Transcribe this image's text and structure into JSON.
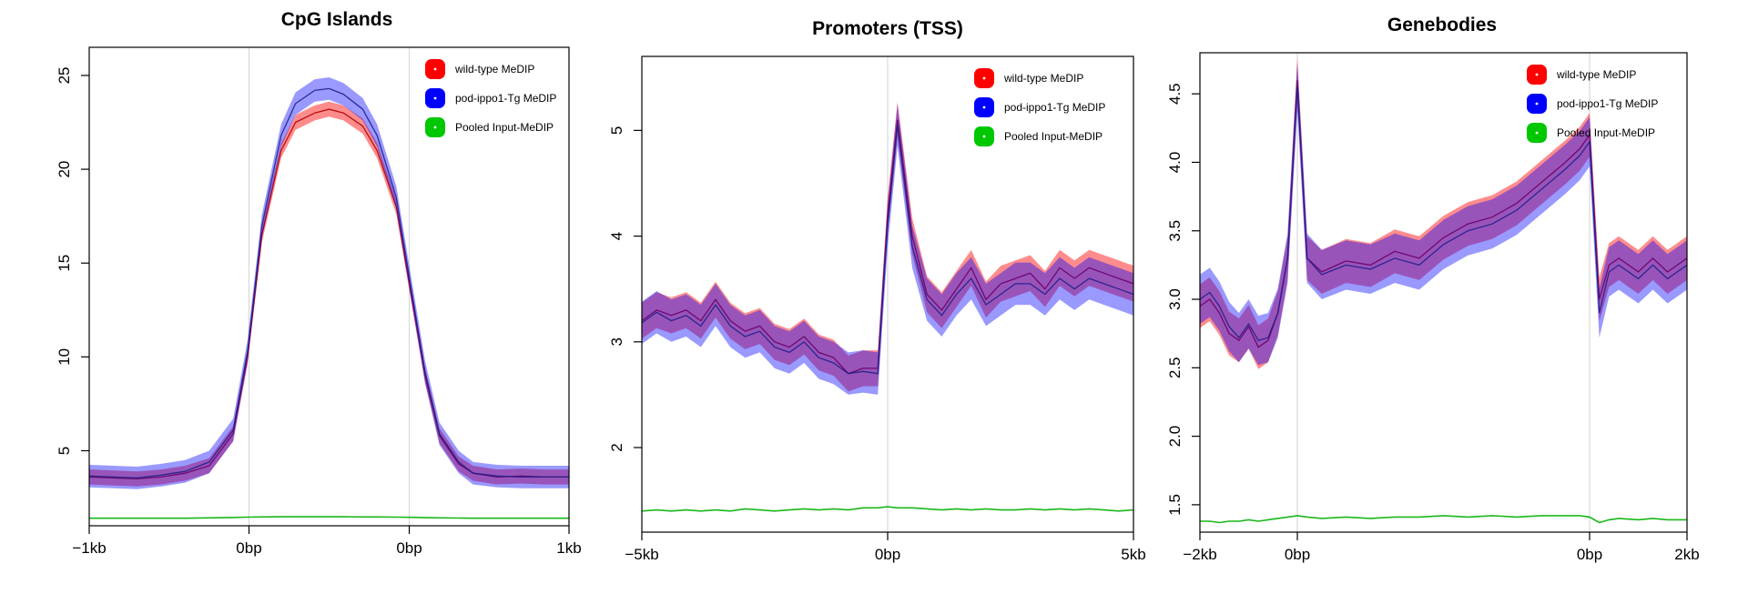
{
  "chart_data": [
    {
      "type": "line",
      "title": "CpG Islands",
      "xlabel": "",
      "ylabel": "",
      "x_ticks": [
        {
          "label": "−1kb",
          "pos": 0
        },
        {
          "label": "0bp",
          "pos": 0.333
        },
        {
          "label": "0bp",
          "pos": 0.667
        },
        {
          "label": "1kb",
          "pos": 1
        }
      ],
      "vlines": [
        0.333,
        0.667
      ],
      "ylim": [
        1.0,
        26.5
      ],
      "yticks": [
        5,
        10,
        15,
        20,
        25
      ],
      "ytick_labels": [
        "5",
        "10",
        "15",
        "20",
        "25"
      ],
      "legend": [
        {
          "label": "wild-type MeDIP",
          "color": "#ff0000"
        },
        {
          "label": "pod-ippo1-Tg MeDIP",
          "color": "#0000ff"
        },
        {
          "label": "Pooled Input-MeDIP",
          "color": "#00c800"
        }
      ],
      "legend_position": "top-right",
      "x": [
        0,
        0.05,
        0.1,
        0.15,
        0.2,
        0.25,
        0.3,
        0.33,
        0.36,
        0.4,
        0.43,
        0.47,
        0.5,
        0.53,
        0.57,
        0.6,
        0.64,
        0.67,
        0.7,
        0.73,
        0.77,
        0.8,
        0.85,
        0.9,
        0.95,
        1.0
      ],
      "series": [
        {
          "name": "wild-type MeDIP",
          "color": "#ff0000",
          "band": 0.4,
          "values": [
            3.6,
            3.55,
            3.5,
            3.6,
            3.8,
            4.2,
            5.9,
            10.0,
            16.5,
            21.0,
            22.5,
            23.0,
            23.2,
            23.0,
            22.3,
            21.0,
            18.0,
            13.5,
            9.0,
            5.8,
            4.3,
            3.8,
            3.6,
            3.65,
            3.6,
            3.6
          ]
        },
        {
          "name": "pod-ippo1-Tg MeDIP",
          "color": "#0000ff",
          "band": 0.6,
          "values": [
            3.65,
            3.6,
            3.55,
            3.7,
            3.9,
            4.4,
            6.1,
            10.3,
            17.0,
            21.8,
            23.5,
            24.2,
            24.3,
            24.0,
            23.2,
            21.8,
            18.5,
            13.8,
            9.2,
            5.9,
            4.4,
            3.8,
            3.65,
            3.6,
            3.6,
            3.6
          ]
        },
        {
          "name": "Pooled Input-MeDIP",
          "color": "#00c800",
          "band": 0,
          "values": [
            1.4,
            1.4,
            1.4,
            1.4,
            1.4,
            1.42,
            1.44,
            1.46,
            1.47,
            1.48,
            1.48,
            1.48,
            1.48,
            1.48,
            1.47,
            1.47,
            1.46,
            1.45,
            1.43,
            1.42,
            1.41,
            1.4,
            1.4,
            1.4,
            1.4,
            1.4
          ]
        }
      ]
    },
    {
      "type": "line",
      "title": "Promoters (TSS)",
      "xlabel": "",
      "ylabel": "",
      "x_ticks": [
        {
          "label": "−5kb",
          "pos": 0
        },
        {
          "label": "0bp",
          "pos": 0.5
        },
        {
          "label": "5kb",
          "pos": 1
        }
      ],
      "vlines": [
        0.5
      ],
      "ylim": [
        1.2,
        5.7
      ],
      "yticks": [
        2,
        3,
        4,
        5
      ],
      "ytick_labels": [
        "2",
        "3",
        "4",
        "5"
      ],
      "legend": [
        {
          "label": "wild-type MeDIP",
          "color": "#ff0000"
        },
        {
          "label": "pod-ippo1-Tg MeDIP",
          "color": "#0000ff"
        },
        {
          "label": "Pooled Input-MeDIP",
          "color": "#00c800"
        }
      ],
      "legend_position": "top-right",
      "x": [
        0,
        0.03,
        0.06,
        0.09,
        0.12,
        0.15,
        0.18,
        0.21,
        0.24,
        0.27,
        0.3,
        0.33,
        0.36,
        0.39,
        0.42,
        0.45,
        0.48,
        0.5,
        0.52,
        0.55,
        0.58,
        0.61,
        0.64,
        0.67,
        0.7,
        0.73,
        0.76,
        0.79,
        0.82,
        0.85,
        0.88,
        0.91,
        0.94,
        0.97,
        1.0
      ],
      "series": [
        {
          "name": "wild-type MeDIP",
          "color": "#ff0000",
          "band": 0.17,
          "values": [
            3.2,
            3.3,
            3.25,
            3.3,
            3.2,
            3.4,
            3.2,
            3.1,
            3.15,
            3.0,
            2.95,
            3.05,
            2.9,
            2.85,
            2.7,
            2.75,
            2.75,
            4.2,
            5.1,
            4.0,
            3.45,
            3.3,
            3.5,
            3.7,
            3.4,
            3.55,
            3.6,
            3.65,
            3.5,
            3.7,
            3.6,
            3.7,
            3.65,
            3.6,
            3.55
          ]
        },
        {
          "name": "pod-ippo1-Tg MeDIP",
          "color": "#0000ff",
          "band": 0.2,
          "values": [
            3.18,
            3.28,
            3.2,
            3.25,
            3.15,
            3.35,
            3.15,
            3.05,
            3.1,
            2.95,
            2.9,
            3.0,
            2.85,
            2.8,
            2.7,
            2.72,
            2.7,
            4.1,
            5.05,
            3.9,
            3.4,
            3.25,
            3.45,
            3.6,
            3.35,
            3.45,
            3.55,
            3.55,
            3.45,
            3.6,
            3.5,
            3.6,
            3.55,
            3.5,
            3.45
          ]
        },
        {
          "name": "Pooled Input-MeDIP",
          "color": "#00c800",
          "band": 0,
          "values": [
            1.4,
            1.41,
            1.4,
            1.41,
            1.4,
            1.41,
            1.4,
            1.42,
            1.41,
            1.4,
            1.41,
            1.42,
            1.41,
            1.42,
            1.41,
            1.43,
            1.43,
            1.44,
            1.43,
            1.43,
            1.42,
            1.41,
            1.42,
            1.41,
            1.42,
            1.41,
            1.41,
            1.42,
            1.41,
            1.42,
            1.41,
            1.42,
            1.41,
            1.4,
            1.41
          ]
        }
      ]
    },
    {
      "type": "line",
      "title": "Genebodies",
      "xlabel": "",
      "ylabel": "",
      "x_ticks": [
        {
          "label": "−2kb",
          "pos": 0
        },
        {
          "label": "0bp",
          "pos": 0.2
        },
        {
          "label": "0bp",
          "pos": 0.8
        },
        {
          "label": "2kb",
          "pos": 1
        }
      ],
      "vlines": [
        0.2,
        0.8
      ],
      "ylim": [
        1.3,
        4.8
      ],
      "yticks": [
        1.5,
        2.0,
        2.5,
        3.0,
        3.5,
        4.0,
        4.5
      ],
      "ytick_labels": [
        "1.5",
        "2.0",
        "2.5",
        "3.0",
        "3.5",
        "4.0",
        "4.5"
      ],
      "legend": [
        {
          "label": "wild-type MeDIP",
          "color": "#ff0000"
        },
        {
          "label": "pod-ippo1-Tg MeDIP",
          "color": "#0000ff"
        },
        {
          "label": "Pooled Input-MeDIP",
          "color": "#00c800"
        }
      ],
      "legend_position": "top-right",
      "x": [
        0,
        0.02,
        0.04,
        0.06,
        0.08,
        0.1,
        0.12,
        0.14,
        0.16,
        0.18,
        0.2,
        0.22,
        0.25,
        0.3,
        0.35,
        0.4,
        0.45,
        0.5,
        0.55,
        0.6,
        0.65,
        0.7,
        0.75,
        0.78,
        0.8,
        0.82,
        0.84,
        0.86,
        0.9,
        0.93,
        0.96,
        1.0
      ],
      "series": [
        {
          "name": "wild-type MeDIP",
          "color": "#ff0000",
          "band": 0.16,
          "values": [
            2.95,
            3.0,
            2.9,
            2.75,
            2.7,
            2.8,
            2.65,
            2.7,
            2.9,
            3.3,
            4.6,
            3.3,
            3.2,
            3.28,
            3.25,
            3.35,
            3.3,
            3.45,
            3.55,
            3.6,
            3.7,
            3.85,
            4.0,
            4.1,
            4.2,
            3.0,
            3.25,
            3.3,
            3.2,
            3.3,
            3.2,
            3.3
          ]
        },
        {
          "name": "pod-ippo1-Tg MeDIP",
          "color": "#0000ff",
          "band": 0.18,
          "values": [
            3.0,
            3.05,
            2.95,
            2.8,
            2.72,
            2.82,
            2.7,
            2.72,
            2.9,
            3.3,
            4.55,
            3.3,
            3.18,
            3.25,
            3.22,
            3.3,
            3.25,
            3.4,
            3.5,
            3.55,
            3.65,
            3.8,
            3.95,
            4.05,
            4.15,
            2.9,
            3.2,
            3.25,
            3.15,
            3.25,
            3.15,
            3.25
          ]
        },
        {
          "name": "Pooled Input-MeDIP",
          "color": "#00c800",
          "band": 0,
          "values": [
            1.38,
            1.38,
            1.37,
            1.38,
            1.38,
            1.39,
            1.38,
            1.39,
            1.4,
            1.41,
            1.42,
            1.41,
            1.4,
            1.41,
            1.4,
            1.41,
            1.41,
            1.42,
            1.41,
            1.42,
            1.41,
            1.42,
            1.42,
            1.42,
            1.41,
            1.37,
            1.39,
            1.4,
            1.39,
            1.4,
            1.39,
            1.39
          ]
        }
      ]
    }
  ]
}
